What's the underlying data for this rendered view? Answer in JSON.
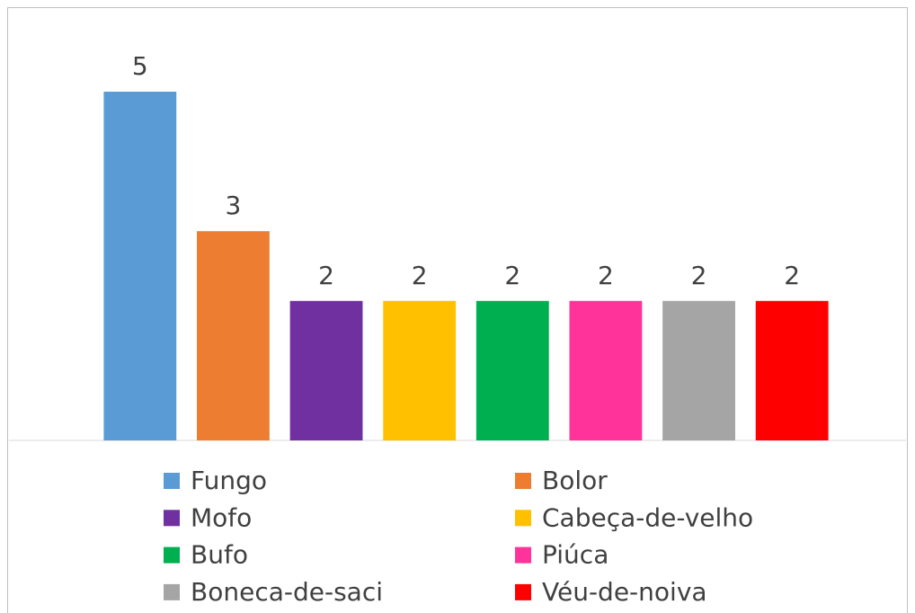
{
  "chart_data": {
    "type": "bar",
    "categories": [
      "Fungo",
      "Bolor",
      "Mofo",
      "Cabeça-de-velho",
      "Bufo",
      "Piúca",
      "Boneca-de-saci",
      "Véu-de-noiva"
    ],
    "values": [
      5,
      3,
      2,
      2,
      2,
      2,
      2,
      2
    ],
    "colors": [
      "#5b9bd5",
      "#ed7d31",
      "#7030a0",
      "#ffc000",
      "#00b050",
      "#ff3399",
      "#a5a5a5",
      "#ff0000"
    ],
    "ylim": [
      0,
      5
    ],
    "legend": "bottom"
  }
}
